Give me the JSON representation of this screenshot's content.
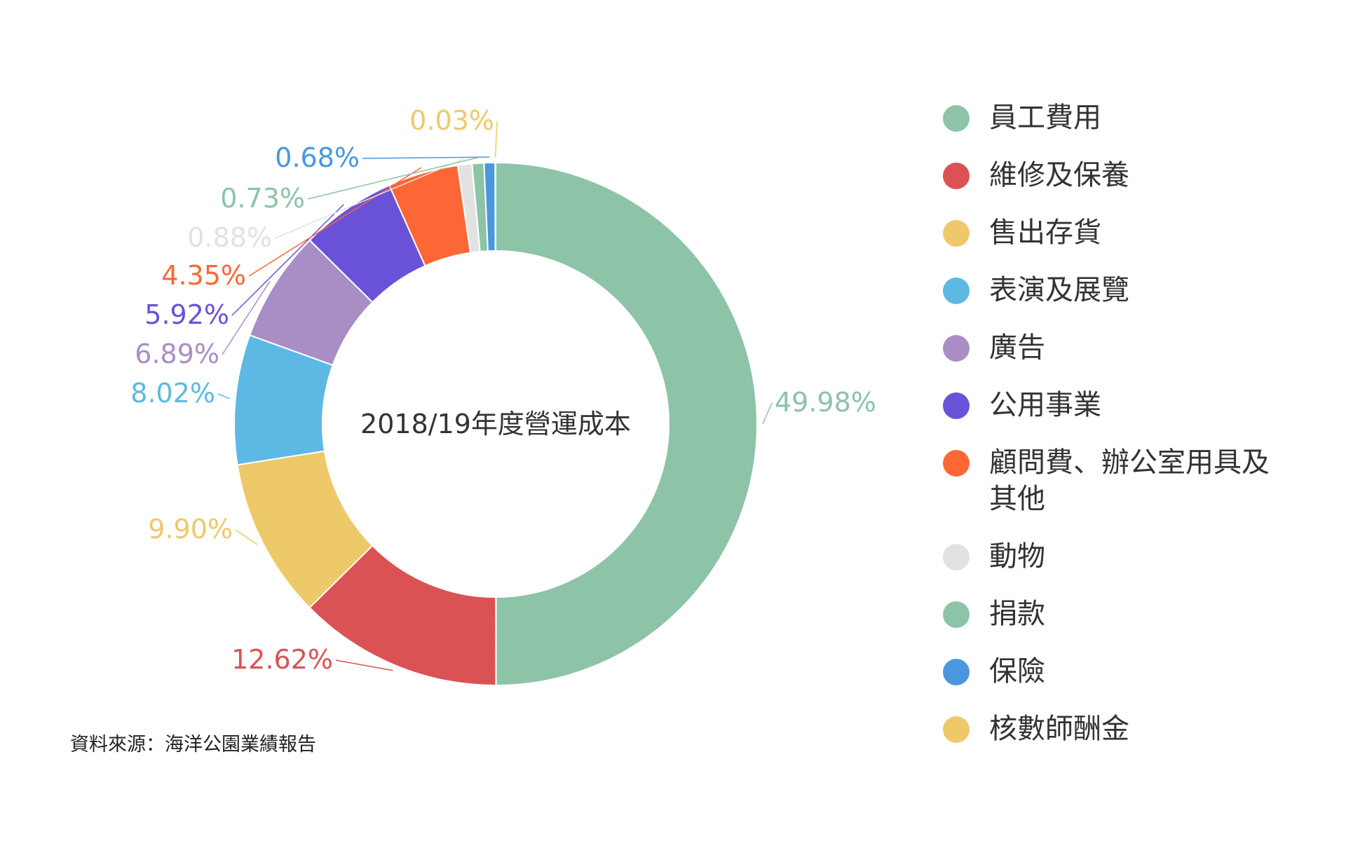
{
  "chart_data": {
    "type": "pie",
    "variant": "donut",
    "title": "2018/19年度營運成本",
    "unit": "%",
    "legend_position": "right",
    "slices": [
      {
        "name": "員工費用",
        "value": 49.98,
        "label": "49.98%",
        "color": "#8dc3a7"
      },
      {
        "name": "維修及保養",
        "value": 12.62,
        "label": "12.62%",
        "color": "#db5254"
      },
      {
        "name": "售出存貨",
        "value": 9.9,
        "label": "9.90%",
        "color": "#eec96a"
      },
      {
        "name": "表演及展覽",
        "value": 8.02,
        "label": "8.02%",
        "color": "#5db8e4"
      },
      {
        "name": "廣告",
        "value": 6.89,
        "label": "6.89%",
        "color": "#a98ec5"
      },
      {
        "name": "公用事業",
        "value": 5.92,
        "label": "5.92%",
        "color": "#6a52d8"
      },
      {
        "name": "顧問費、辦公室用具及其他",
        "value": 4.35,
        "label": "4.35%",
        "color": "#fd6735"
      },
      {
        "name": "動物",
        "value": 0.88,
        "label": "0.88%",
        "color": "#e2e2e2"
      },
      {
        "name": "捐款",
        "value": 0.73,
        "label": "0.73%",
        "color": "#8dc3a7"
      },
      {
        "name": "保險",
        "value": 0.68,
        "label": "0.68%",
        "color": "#4a97dd"
      },
      {
        "name": "核數師酬金",
        "value": 0.03,
        "label": "0.03%",
        "color": "#eec96a"
      }
    ]
  },
  "source": "資料來源：海洋公園業績報告"
}
